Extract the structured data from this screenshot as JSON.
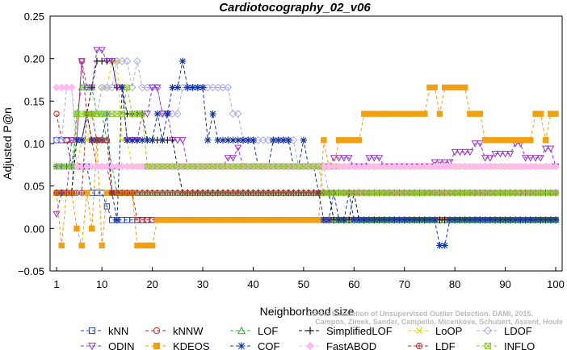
{
  "chart_data": {
    "type": "line",
    "title": "Cardiotocography_02_v06",
    "xlabel": "Neighborhood size",
    "ylabel": "Adjusted P@n",
    "xlim": [
      0,
      100
    ],
    "ylim": [
      -0.05,
      0.25
    ],
    "xticks": [
      1,
      10,
      20,
      30,
      40,
      50,
      60,
      70,
      80,
      90,
      100
    ],
    "yticks": [
      -0.05,
      0.0,
      0.05,
      0.1,
      0.15,
      0.2,
      0.25
    ],
    "ytick_labels": [
      "−0.05",
      "0.00",
      "0.05",
      "0.10",
      "0.15",
      "0.20",
      "0.25"
    ],
    "watermark": [
      "Campos, Zimek, Sander, Campello, Micenkova, Schubert, Assent, Houle",
      "On the Evaluation of Unsupervised Outlier Detection. DAMI, 2015."
    ],
    "legend_position": "bottom",
    "series": [
      {
        "name": "kNN",
        "color": "#1f3fbf",
        "marker": "square",
        "points": [
          [
            1,
            0.104
          ],
          [
            3,
            0.104
          ],
          [
            4,
            0.073
          ],
          [
            7,
            0.073
          ],
          [
            8,
            0.042
          ],
          [
            10,
            0.042
          ],
          [
            11,
            0.026
          ],
          [
            12,
            0.01
          ],
          [
            100,
            0.01
          ]
        ]
      },
      {
        "name": "kNNW",
        "color": "#cc2222",
        "marker": "circle",
        "points": [
          [
            1,
            0.135
          ],
          [
            2,
            0.104
          ],
          [
            5,
            0.104
          ],
          [
            6,
            0.197
          ],
          [
            7,
            0.135
          ],
          [
            8,
            0.104
          ],
          [
            9,
            0.073
          ],
          [
            11,
            0.073
          ],
          [
            12,
            0.042
          ],
          [
            16,
            0.042
          ],
          [
            17,
            0.01
          ],
          [
            100,
            0.01
          ]
        ]
      },
      {
        "name": "LOF",
        "color": "#22bb22",
        "marker": "triangle",
        "points": [
          [
            1,
            0.042
          ],
          [
            5,
            0.135
          ],
          [
            6,
            0.166
          ],
          [
            8,
            0.166
          ],
          [
            9,
            0.135
          ],
          [
            10,
            0.135
          ],
          [
            11,
            0.104
          ],
          [
            12,
            0.073
          ],
          [
            13,
            0.042
          ],
          [
            55,
            0.042
          ],
          [
            56,
            0.01
          ],
          [
            100,
            0.01
          ]
        ]
      },
      {
        "name": "SimplifiedLOF",
        "color": "#111111",
        "marker": "plus",
        "points": [
          [
            1,
            0.042
          ],
          [
            3,
            0.042
          ],
          [
            5,
            0.104
          ],
          [
            7,
            0.135
          ],
          [
            8,
            0.166
          ],
          [
            9,
            0.197
          ],
          [
            12,
            0.197
          ],
          [
            13,
            0.166
          ],
          [
            15,
            0.135
          ],
          [
            18,
            0.135
          ],
          [
            19,
            0.104
          ],
          [
            24,
            0.104
          ],
          [
            25,
            0.073
          ],
          [
            26,
            0.042
          ],
          [
            55,
            0.042
          ],
          [
            56,
            0.01
          ],
          [
            60,
            0.042
          ],
          [
            61,
            0.01
          ],
          [
            100,
            0.01
          ]
        ]
      },
      {
        "name": "LoOP",
        "color": "#dddd00",
        "marker": "x",
        "points": [
          [
            1,
            0.073
          ],
          [
            5,
            0.073
          ],
          [
            6,
            0.104
          ],
          [
            8,
            0.135
          ],
          [
            10,
            0.166
          ],
          [
            12,
            0.197
          ],
          [
            14,
            0.104
          ],
          [
            16,
            0.073
          ],
          [
            30,
            0.073
          ],
          [
            55,
            0.073
          ],
          [
            100,
            0.073
          ]
        ]
      },
      {
        "name": "LDOF",
        "color": "#aaaaee",
        "marker": "diamond",
        "points": [
          [
            1,
            0.104
          ],
          [
            3,
            0.166
          ],
          [
            5,
            0.104
          ],
          [
            7,
            0.135
          ],
          [
            10,
            0.166
          ],
          [
            13,
            0.197
          ],
          [
            16,
            0.166
          ],
          [
            17,
            0.197
          ],
          [
            18,
            0.166
          ],
          [
            22,
            0.135
          ],
          [
            26,
            0.166
          ],
          [
            35,
            0.166
          ],
          [
            36,
            0.135
          ],
          [
            38,
            0.104
          ],
          [
            48,
            0.104
          ],
          [
            49,
            0.073
          ],
          [
            53,
            0.073
          ],
          [
            55,
            0.042
          ],
          [
            100,
            0.042
          ]
        ]
      },
      {
        "name": "ODIN",
        "color": "#9933cc",
        "marker": "triangle-down",
        "points": [
          [
            1,
            0.017
          ],
          [
            2,
            0.042
          ],
          [
            4,
            0.104
          ],
          [
            6,
            0.197
          ],
          [
            7,
            0.166
          ],
          [
            9,
            0.21
          ],
          [
            11,
            0.197
          ],
          [
            13,
            0.166
          ],
          [
            15,
            0.104
          ],
          [
            18,
            0.135
          ],
          [
            20,
            0.166
          ],
          [
            22,
            0.135
          ],
          [
            24,
            0.104
          ],
          [
            27,
            0.073
          ],
          [
            32,
            0.073
          ],
          [
            35,
            0.083
          ],
          [
            37,
            0.095
          ],
          [
            38,
            0.073
          ],
          [
            54,
            0.073
          ],
          [
            56,
            0.083
          ],
          [
            60,
            0.073
          ],
          [
            63,
            0.083
          ],
          [
            66,
            0.073
          ],
          [
            74,
            0.073
          ],
          [
            76,
            0.078
          ],
          [
            80,
            0.09
          ],
          [
            84,
            0.1
          ],
          [
            86,
            0.083
          ],
          [
            88,
            0.088
          ],
          [
            92,
            0.1
          ],
          [
            94,
            0.083
          ],
          [
            98,
            0.094
          ],
          [
            100,
            0.073
          ]
        ]
      },
      {
        "name": "KDEOS",
        "color": "#f0a010",
        "marker": "square-filled",
        "points": [
          [
            1,
            0.042
          ],
          [
            2,
            -0.02
          ],
          [
            3,
            0.042
          ],
          [
            5,
            0.0
          ],
          [
            6,
            -0.02
          ],
          [
            7,
            0.042
          ],
          [
            8,
            0.0
          ],
          [
            9,
            0.104
          ],
          [
            10,
            -0.02
          ],
          [
            11,
            0.042
          ],
          [
            15,
            0.042
          ],
          [
            16,
            0.042
          ],
          [
            17,
            -0.02
          ],
          [
            20,
            -0.02
          ],
          [
            21,
            0.01
          ],
          [
            53,
            0.01
          ],
          [
            54,
            0.104
          ],
          [
            55,
            0.073
          ],
          [
            57,
            0.104
          ],
          [
            61,
            0.104
          ],
          [
            62,
            0.135
          ],
          [
            74,
            0.135
          ],
          [
            75,
            0.166
          ],
          [
            76,
            0.166
          ],
          [
            77,
            0.135
          ],
          [
            78,
            0.166
          ],
          [
            82,
            0.166
          ],
          [
            83,
            0.135
          ],
          [
            85,
            0.135
          ],
          [
            86,
            0.104
          ],
          [
            95,
            0.104
          ],
          [
            96,
            0.135
          ],
          [
            98,
            0.104
          ],
          [
            99,
            0.135
          ],
          [
            100,
            0.135
          ]
        ]
      },
      {
        "name": "COF",
        "color": "#113399",
        "marker": "star",
        "points": [
          [
            1,
            0.073
          ],
          [
            3,
            0.073
          ],
          [
            5,
            0.104
          ],
          [
            7,
            0.135
          ],
          [
            8,
            0.104
          ],
          [
            11,
            0.135
          ],
          [
            12,
            0.042
          ],
          [
            13,
            0.01
          ],
          [
            14,
            0.166
          ],
          [
            15,
            0.104
          ],
          [
            20,
            0.104
          ],
          [
            21,
            0.135
          ],
          [
            22,
            0.104
          ],
          [
            23,
            0.135
          ],
          [
            24,
            0.166
          ],
          [
            25,
            0.166
          ],
          [
            26,
            0.197
          ],
          [
            27,
            0.166
          ],
          [
            30,
            0.166
          ],
          [
            31,
            0.104
          ],
          [
            32,
            0.135
          ],
          [
            33,
            0.104
          ],
          [
            40,
            0.104
          ],
          [
            41,
            0.073
          ],
          [
            44,
            0.104
          ],
          [
            47,
            0.104
          ],
          [
            48,
            0.073
          ],
          [
            50,
            0.104
          ],
          [
            51,
            0.073
          ],
          [
            53,
            0.042
          ],
          [
            54,
            0.01
          ],
          [
            56,
            0.042
          ],
          [
            57,
            0.01
          ],
          [
            59,
            0.042
          ],
          [
            60,
            0.01
          ],
          [
            76,
            0.01
          ],
          [
            77,
            -0.02
          ],
          [
            78,
            -0.02
          ],
          [
            79,
            0.01
          ],
          [
            100,
            0.01
          ]
        ]
      },
      {
        "name": "FastABOD",
        "color": "#ffbbee",
        "marker": "diamond-filled",
        "points": [
          [
            1,
            0.166
          ],
          [
            3,
            0.166
          ],
          [
            5,
            0.073
          ],
          [
            100,
            0.073
          ]
        ]
      },
      {
        "name": "LDF",
        "color": "#aa3333",
        "marker": "circle-plus",
        "points": [
          [
            1,
            0.042
          ],
          [
            5,
            0.042
          ],
          [
            7,
            0.135
          ],
          [
            9,
            0.104
          ],
          [
            12,
            0.042
          ],
          [
            86,
            0.042
          ],
          [
            87,
            0.042
          ],
          [
            100,
            0.042
          ]
        ]
      },
      {
        "name": "INFLO",
        "color": "#88cc22",
        "marker": "square-x",
        "points": [
          [
            1,
            0.073
          ],
          [
            3,
            0.073
          ],
          [
            5,
            0.135
          ],
          [
            7,
            0.135
          ],
          [
            9,
            0.135
          ],
          [
            11,
            0.135
          ],
          [
            13,
            0.135
          ],
          [
            15,
            0.166
          ],
          [
            16,
            0.135
          ],
          [
            18,
            0.135
          ],
          [
            19,
            0.073
          ],
          [
            39,
            0.073
          ],
          [
            40,
            0.073
          ],
          [
            53,
            0.073
          ],
          [
            54,
            0.042
          ],
          [
            59,
            0.042
          ],
          [
            60,
            0.042
          ],
          [
            100,
            0.042
          ]
        ]
      }
    ]
  }
}
